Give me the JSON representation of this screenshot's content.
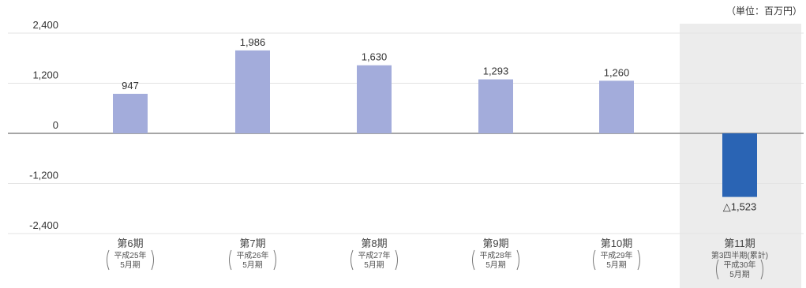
{
  "unit_label": "（単位：百万円）",
  "colors": {
    "bar": "#a3acdb",
    "negative_bar": "#2a64b4",
    "highlight_bg": "#ececec",
    "grid": "#e3e3e3",
    "zero_line": "#888888"
  },
  "chart_data": {
    "type": "bar",
    "title": "",
    "xlabel": "",
    "ylabel": "",
    "ylim": [
      -2400,
      2400
    ],
    "yticks": [
      2400,
      1200,
      0,
      -1200,
      -2400
    ],
    "ytick_labels": [
      "2,400",
      "1,200",
      "0",
      "-1,200",
      "-2,400"
    ],
    "grid": true,
    "highlight_index": 5,
    "categories": [
      {
        "label": "第6期",
        "sub": [
          "平成25年",
          "5月期"
        ]
      },
      {
        "label": "第7期",
        "sub": [
          "平成26年",
          "5月期"
        ]
      },
      {
        "label": "第8期",
        "sub": [
          "平成27年",
          "5月期"
        ]
      },
      {
        "label": "第9期",
        "sub": [
          "平成28年",
          "5月期"
        ]
      },
      {
        "label": "第10期",
        "sub": [
          "平成29年",
          "5月期"
        ]
      },
      {
        "label": "第11期",
        "sub": [
          "第3四半期(累計)",
          "平成30年",
          "5月期"
        ]
      }
    ],
    "values": [
      947,
      1986,
      1630,
      1293,
      1260,
      -1523
    ],
    "data_labels": [
      "947",
      "1,986",
      "1,630",
      "1,293",
      "1,260",
      "△1,523"
    ]
  }
}
